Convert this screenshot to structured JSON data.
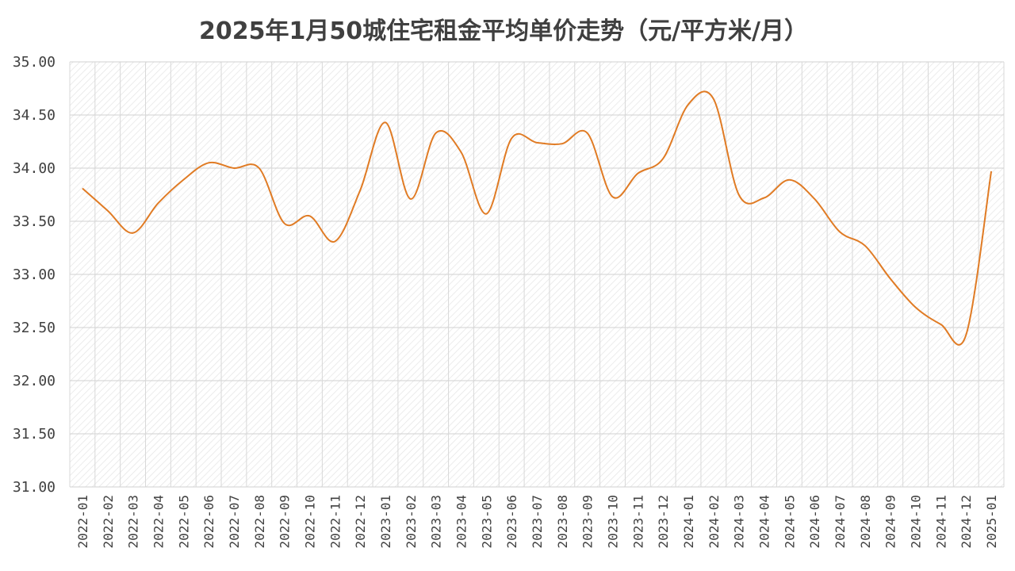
{
  "chart_data": {
    "type": "line",
    "title": "2025年1月50城住宅租金平均单价走势（元/平方米/月）",
    "xlabel": "",
    "ylabel": "",
    "ylim": [
      31.0,
      35.0
    ],
    "yticks": [
      "31.00",
      "31.50",
      "32.00",
      "32.50",
      "33.00",
      "33.50",
      "34.00",
      "34.50",
      "35.00"
    ],
    "grid": true,
    "smooth": true,
    "line_color": "#E07B24",
    "categories": [
      "2022-01",
      "2022-02",
      "2022-03",
      "2022-04",
      "2022-05",
      "2022-06",
      "2022-07",
      "2022-08",
      "2022-09",
      "2022-10",
      "2022-11",
      "2022-12",
      "2023-01",
      "2023-02",
      "2023-03",
      "2023-04",
      "2023-05",
      "2023-06",
      "2023-07",
      "2023-08",
      "2023-09",
      "2023-10",
      "2023-11",
      "2023-12",
      "2024-01",
      "2024-02",
      "2024-03",
      "2024-04",
      "2024-05",
      "2024-06",
      "2024-07",
      "2024-08",
      "2024-09",
      "2024-10",
      "2024-11",
      "2024-12",
      "2025-01"
    ],
    "values": [
      33.81,
      33.6,
      33.39,
      33.67,
      33.89,
      34.05,
      34.0,
      34.0,
      33.48,
      33.55,
      33.31,
      33.79,
      34.43,
      33.71,
      34.33,
      34.15,
      33.57,
      34.28,
      34.24,
      34.23,
      34.33,
      33.73,
      33.95,
      34.09,
      34.6,
      34.65,
      33.75,
      33.72,
      33.89,
      33.71,
      33.4,
      33.27,
      32.96,
      32.69,
      32.53,
      32.43,
      33.97
    ]
  }
}
